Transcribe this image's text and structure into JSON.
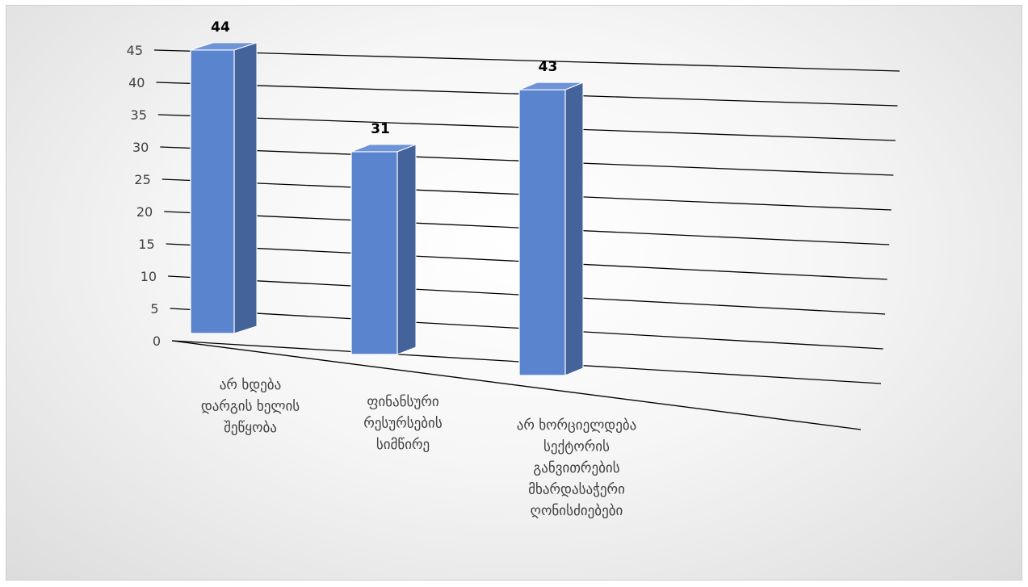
{
  "chart_data": {
    "type": "bar",
    "style": "3d-perspective-column",
    "categories": [
      [
        "არ ხდება",
        "დარგის ხელის",
        "შეწყობა"
      ],
      [
        "ფინანსური",
        "რესურსების",
        "სიმწირე"
      ],
      [
        "არ ხორციელდება",
        "სექტორის",
        "განვითრების",
        "მხარდასაჭერი",
        "ღონისძიებები"
      ]
    ],
    "values": [
      44,
      31,
      43
    ],
    "data_labels": [
      "44",
      "31",
      "43"
    ],
    "ylim": [
      0,
      45
    ],
    "yticks": [
      0,
      5,
      10,
      15,
      20,
      25,
      30,
      35,
      40,
      45
    ],
    "ytick_labels": [
      "0",
      "5",
      "10",
      "15",
      "20",
      "25",
      "30",
      "35",
      "40",
      "45"
    ],
    "gridlines": true,
    "legend": false,
    "colors": {
      "bar_front": "#5b84cf",
      "bar_side": "#44639b",
      "bar_top": "#6e93d6",
      "bar_edge": "#ffffff",
      "grid": "#000000",
      "tick_text": "#404040"
    }
  }
}
